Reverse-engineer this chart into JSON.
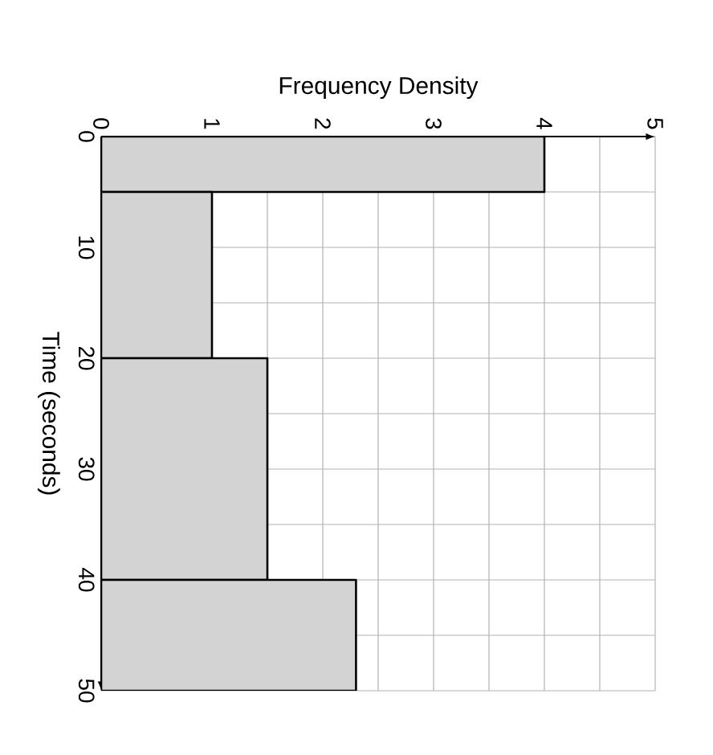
{
  "chart_data": {
    "type": "histogram",
    "orientation": "horizontal",
    "xlabel": "Frequency Density",
    "ylabel": "Time (seconds)",
    "bins": [
      0,
      5,
      20,
      40,
      50
    ],
    "values": [
      4,
      1,
      1.5,
      2.3
    ],
    "color": "#d3d3d3",
    "xlim": [
      0,
      5
    ],
    "xticks": [
      0,
      1,
      2,
      3,
      4,
      5
    ],
    "ylim": [
      50,
      0
    ],
    "yticks": [
      0,
      10,
      20,
      30,
      40,
      50
    ],
    "grid": true
  }
}
